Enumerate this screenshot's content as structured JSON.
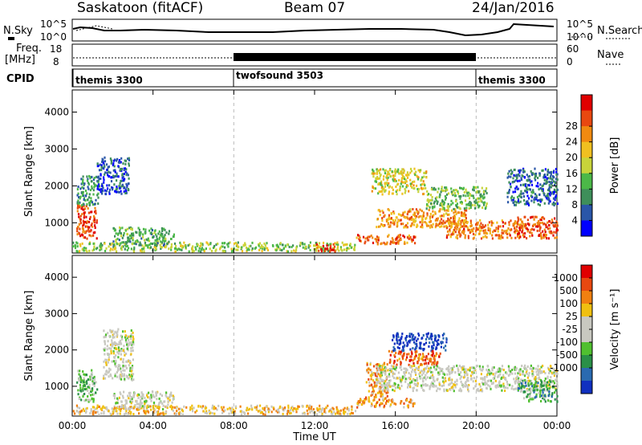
{
  "header": {
    "station": "Saskatoon (fitACF)",
    "beam": "Beam 07",
    "date": "24/Jan/2016"
  },
  "left_labels": {
    "nsky": "N.Sky",
    "freq": "Freq.",
    "freq_unit": "[MHz]",
    "cpid": "CPID"
  },
  "right_labels": {
    "nsearch": "N.Search",
    "nave": "Nave"
  },
  "noise_panel": {
    "ticks_left": [
      "10^5",
      "10^0"
    ],
    "ticks_right": [
      "10^5",
      "10^0"
    ]
  },
  "freq_panel": {
    "ticks_left": [
      "18",
      "8"
    ],
    "ticks_right": [
      "60",
      "0"
    ]
  },
  "cpid_panel": {
    "segments": [
      {
        "label": "themis 3300",
        "start": 0,
        "end": 8
      },
      {
        "label": "twofsound 3503",
        "start": 8,
        "end": 20
      },
      {
        "label": "themis 3300",
        "start": 20,
        "end": 24
      }
    ]
  },
  "chart_data": [
    {
      "type": "heatmap",
      "name": "Power",
      "ylabel": "Slant Range [km]",
      "xlim": [
        0,
        24
      ],
      "ylim": [
        180,
        4600
      ],
      "yticks": [
        "1000",
        "2000",
        "3000",
        "4000"
      ],
      "colorbar": {
        "label": "Power [dB]",
        "ticks": [
          "4",
          "8",
          "12",
          "16",
          "20",
          "24",
          "28"
        ],
        "colors": [
          "#0000ff",
          "#2a56a8",
          "#3e8f5a",
          "#4cb848",
          "#c8d43a",
          "#f0c020",
          "#f08a10",
          "#e84810",
          "#e00000"
        ]
      },
      "regions": [
        {
          "t": [
            0.2,
            1.2
          ],
          "r": [
            600,
            1500
          ],
          "level": 0.85
        },
        {
          "t": [
            0.2,
            1.3
          ],
          "r": [
            1500,
            2300
          ],
          "level": 0.3
        },
        {
          "t": [
            1.2,
            2.8
          ],
          "r": [
            1800,
            2800
          ],
          "level": 0.15
        },
        {
          "t": [
            0,
            14
          ],
          "r": [
            250,
            500
          ],
          "level": 0.45
        },
        {
          "t": [
            2.0,
            5.0
          ],
          "r": [
            400,
            900
          ],
          "level": 0.35
        },
        {
          "t": [
            12,
            13
          ],
          "r": [
            250,
            450
          ],
          "level": 0.9
        },
        {
          "t": [
            14.0,
            17.0
          ],
          "r": [
            450,
            700
          ],
          "level": 0.8
        },
        {
          "t": [
            14.8,
            17.5
          ],
          "r": [
            1800,
            2500
          ],
          "level": 0.55
        },
        {
          "t": [
            15.0,
            19.5
          ],
          "r": [
            900,
            1400
          ],
          "level": 0.7
        },
        {
          "t": [
            17.5,
            20.5
          ],
          "r": [
            1400,
            2000
          ],
          "level": 0.4
        },
        {
          "t": [
            18.5,
            22.5
          ],
          "r": [
            600,
            1100
          ],
          "level": 0.75
        },
        {
          "t": [
            22.0,
            24.0
          ],
          "r": [
            600,
            1200
          ],
          "level": 0.85
        },
        {
          "t": [
            21.5,
            24.0
          ],
          "r": [
            1500,
            2500
          ],
          "level": 0.2
        }
      ]
    },
    {
      "type": "heatmap",
      "name": "Velocity",
      "ylabel": "Slant Range [km]",
      "xlabel": "Time UT",
      "xlim": [
        0,
        24
      ],
      "ylim": [
        180,
        4600
      ],
      "xticks": [
        "00:00",
        "04:00",
        "08:00",
        "12:00",
        "16:00",
        "20:00",
        "00:00"
      ],
      "yticks": [
        "1000",
        "2000",
        "3000",
        "4000"
      ],
      "colorbar": {
        "label": "Velocity [m s⁻¹]",
        "ticks": [
          "1000",
          "500",
          "100",
          "25",
          "-25",
          "-100",
          "-500",
          "-1000"
        ],
        "colors": [
          "#1030c0",
          "#2a6ab0",
          "#2a9048",
          "#50c030",
          "#c8c8c0",
          "#c8c8c0",
          "#f0c010",
          "#f08010",
          "#e84810",
          "#e00000"
        ]
      },
      "regions": [
        {
          "t": [
            0.2,
            1.2
          ],
          "r": [
            600,
            1500
          ],
          "level": 0.35
        },
        {
          "t": [
            1.5,
            3.0
          ],
          "r": [
            1200,
            2600
          ],
          "level": 0.5
        },
        {
          "t": [
            0,
            14
          ],
          "r": [
            250,
            500
          ],
          "level": 0.65
        },
        {
          "t": [
            2.0,
            5.0
          ],
          "r": [
            400,
            900
          ],
          "level": 0.5
        },
        {
          "t": [
            14.0,
            17.0
          ],
          "r": [
            450,
            700
          ],
          "level": 0.7
        },
        {
          "t": [
            14.5,
            15.6
          ],
          "r": [
            700,
            1700
          ],
          "level": 0.72
        },
        {
          "t": [
            15.8,
            18.5
          ],
          "r": [
            2000,
            2500
          ],
          "level": 0.05
        },
        {
          "t": [
            15.6,
            18.2
          ],
          "r": [
            1600,
            2000
          ],
          "level": 0.8
        },
        {
          "t": [
            15.0,
            24.0
          ],
          "r": [
            900,
            1600
          ],
          "level": 0.5
        },
        {
          "t": [
            22.0,
            24.0
          ],
          "r": [
            600,
            1200
          ],
          "level": 0.3
        }
      ]
    }
  ]
}
